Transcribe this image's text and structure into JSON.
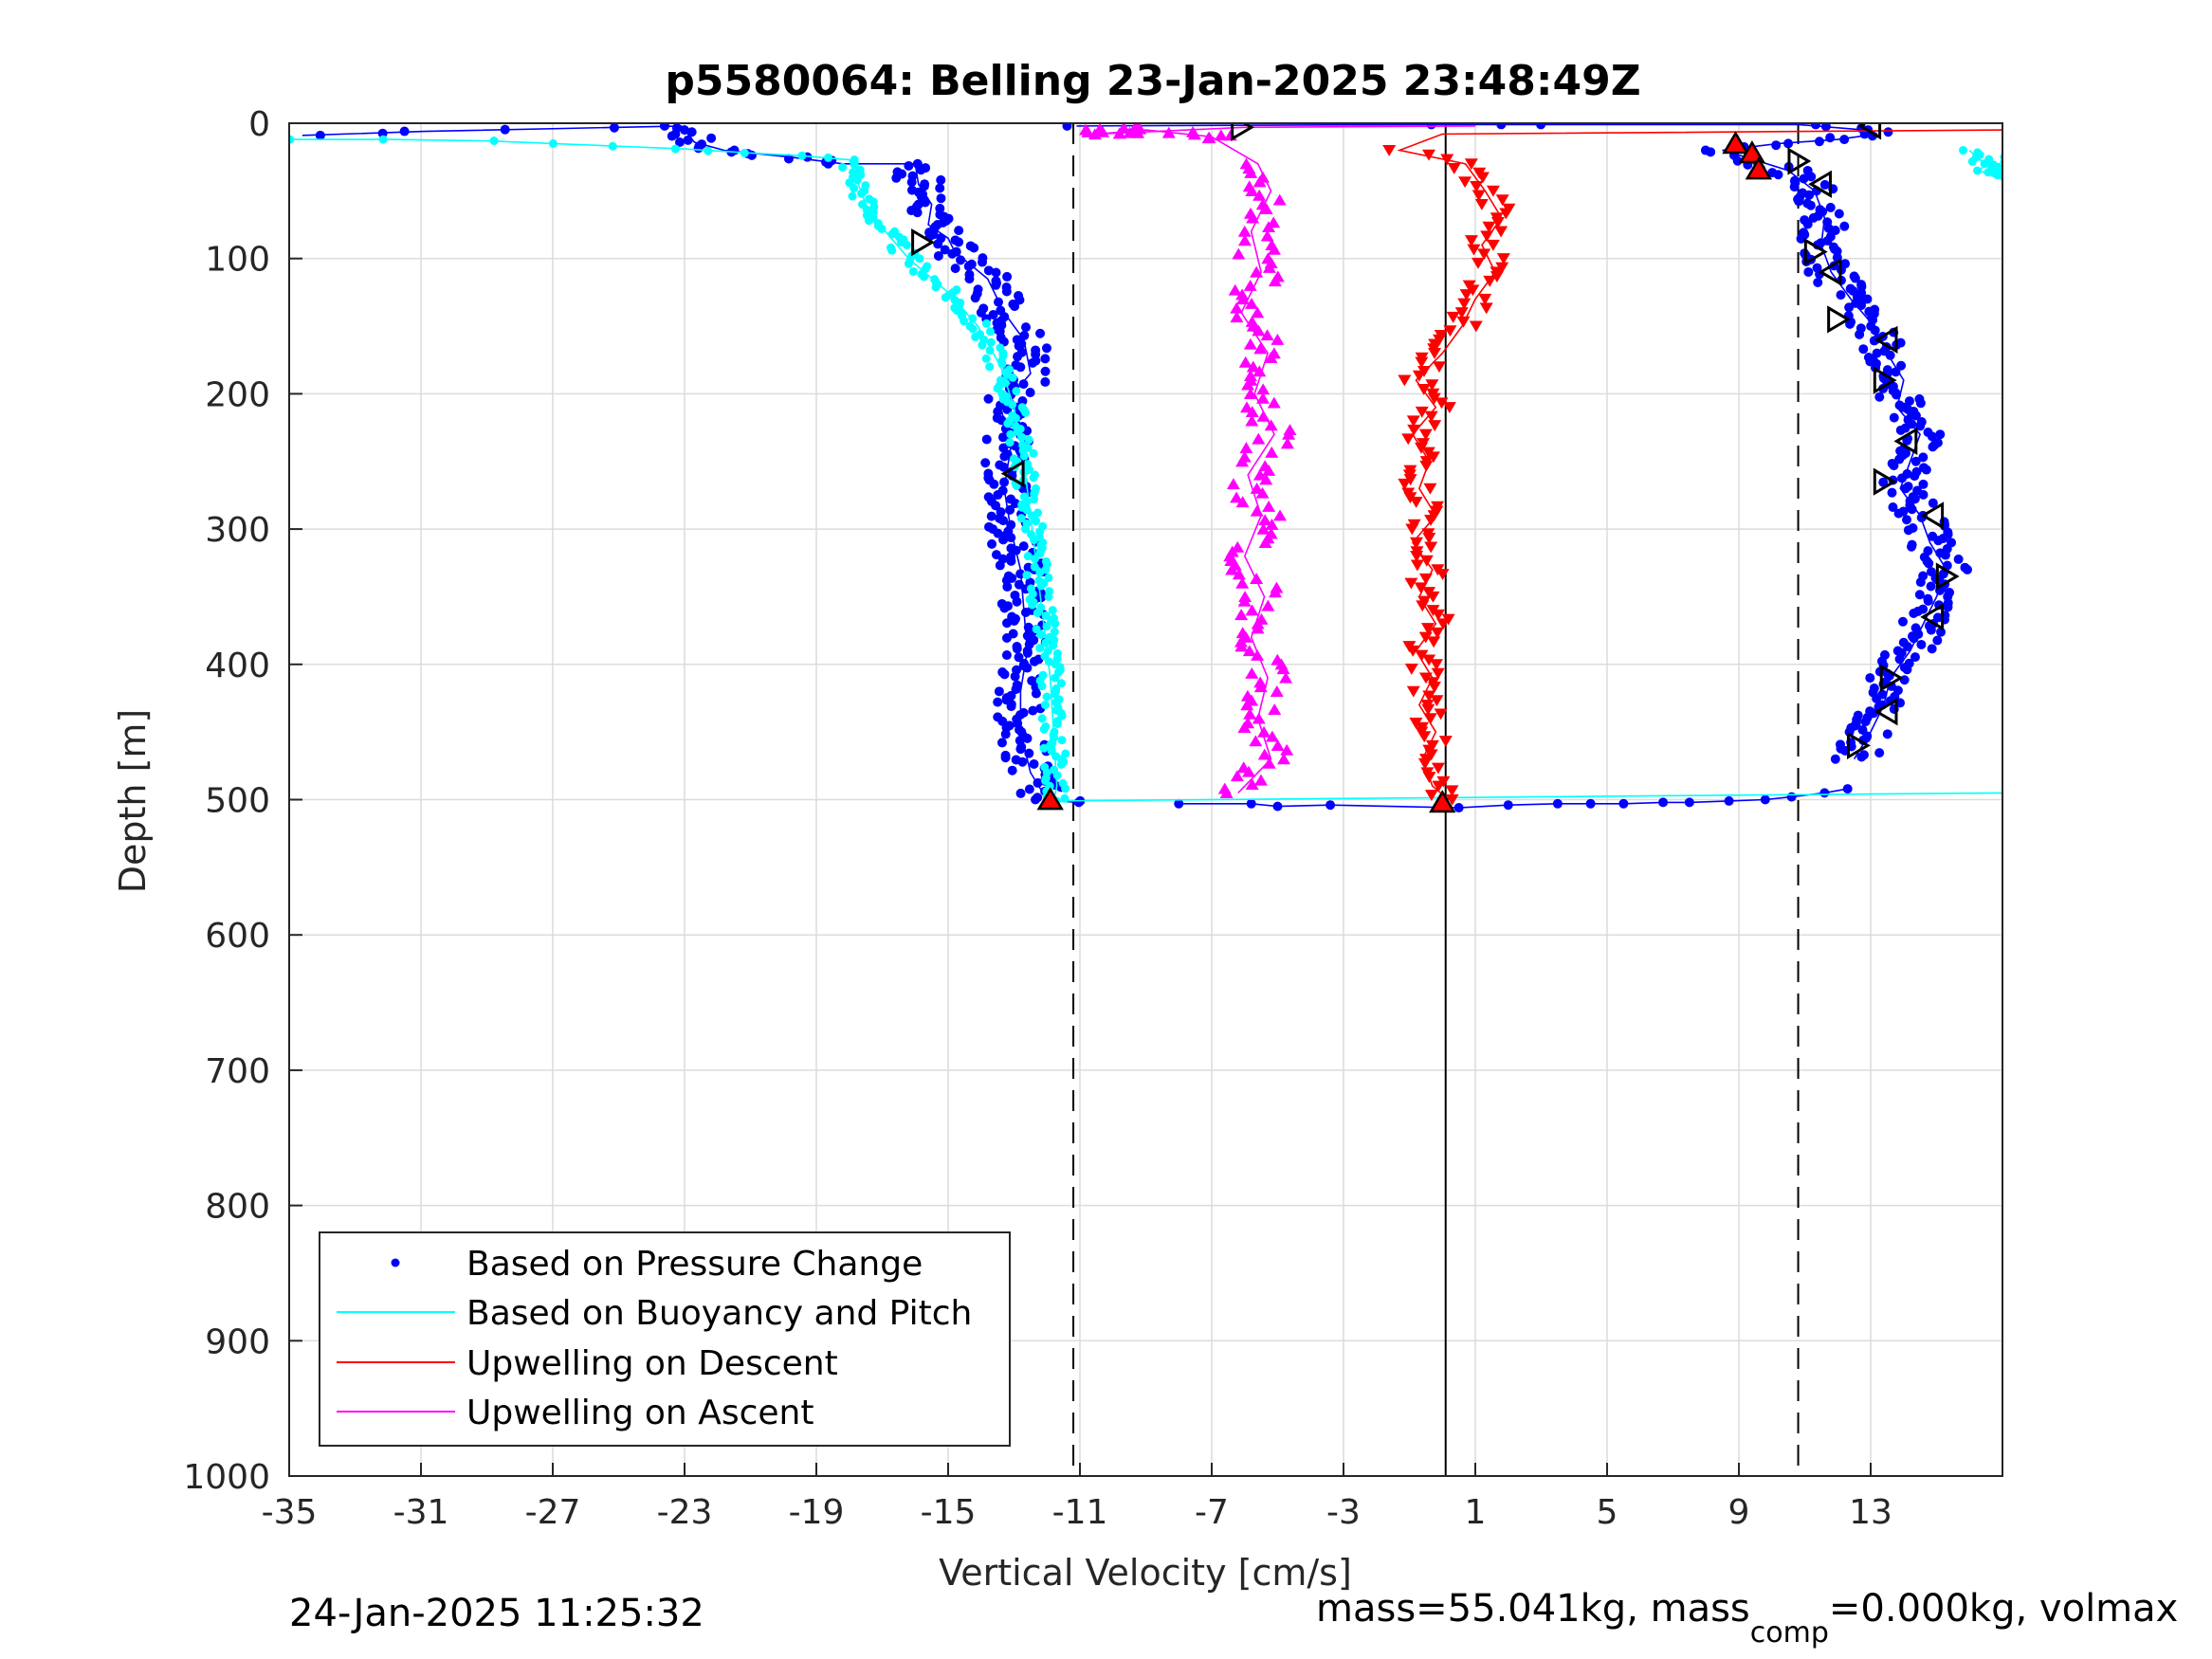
{
  "chart_data": {
    "type": "scatter",
    "title": "p5580064: Belling 23-Jan-2025 23:48:49Z",
    "xlabel": "Vertical Velocity [cm/s]",
    "ylabel": "Depth [m]",
    "xlim": [
      -35,
      17
    ],
    "ylim": [
      0,
      1000
    ],
    "y_reversed": true,
    "grid": true,
    "x_ticks": [
      -35,
      -31,
      -27,
      -23,
      -19,
      -15,
      -11,
      -7,
      -3,
      1,
      5,
      9,
      13
    ],
    "y_ticks": [
      0,
      100,
      200,
      300,
      400,
      500,
      600,
      700,
      800,
      900,
      1000
    ],
    "reference_lines": {
      "dashed": [
        -11.2,
        10.8
      ],
      "solid": [
        0.1
      ]
    },
    "legend": {
      "placement": "lower-left",
      "entries": [
        {
          "label": "Based on Pressure Change",
          "color": "#0000ff",
          "marker": "dot"
        },
        {
          "label": "Based on Buoyancy and Pitch",
          "color": "#00ffff",
          "marker": "line"
        },
        {
          "label": "Upwelling on Descent",
          "color": "#ff0000",
          "marker": "line"
        },
        {
          "label": "Upwelling on Ascent",
          "color": "#ff00ff",
          "marker": "line"
        }
      ]
    },
    "series": [
      {
        "key": "pressure_descent",
        "label": "Based on Pressure Change",
        "color": "#0000ff",
        "points": [
          [
            -34.6,
            9
          ],
          [
            -30.9,
            6
          ],
          [
            -23.1,
            2
          ],
          [
            -22.7,
            14
          ],
          [
            -21.8,
            20
          ],
          [
            -19.8,
            25
          ],
          [
            -18.2,
            30
          ],
          [
            -16.0,
            30
          ],
          [
            -15.9,
            45
          ],
          [
            -15.5,
            60
          ],
          [
            -15.6,
            75
          ],
          [
            -15.0,
            85
          ],
          [
            -14.8,
            95
          ],
          [
            -13.8,
            115
          ],
          [
            -13.3,
            140
          ],
          [
            -12.7,
            160
          ],
          [
            -12.5,
            185
          ],
          [
            -13.4,
            210
          ],
          [
            -13.1,
            240
          ],
          [
            -13.3,
            270
          ],
          [
            -13.1,
            300
          ],
          [
            -12.8,
            330
          ],
          [
            -12.7,
            360
          ],
          [
            -12.6,
            390
          ],
          [
            -12.8,
            420
          ],
          [
            -12.8,
            450
          ],
          [
            -12.5,
            480
          ],
          [
            -12.0,
            500
          ],
          [
            -11.1,
            502
          ]
        ]
      },
      {
        "key": "pressure_bottom",
        "label": "Based on Pressure Change",
        "color": "#0000ff",
        "points": [
          [
            -8.0,
            503
          ],
          [
            -5.8,
            503
          ],
          [
            -5.0,
            505
          ],
          [
            -3.4,
            504
          ],
          [
            0.5,
            506
          ],
          [
            2.0,
            504
          ],
          [
            3.5,
            503
          ],
          [
            4.5,
            503
          ],
          [
            5.5,
            503
          ],
          [
            6.7,
            502
          ],
          [
            7.5,
            502
          ],
          [
            8.7,
            501
          ],
          [
            9.8,
            500
          ],
          [
            10.6,
            498
          ],
          [
            11.6,
            495
          ],
          [
            12.3,
            492
          ]
        ]
      },
      {
        "key": "pressure_ascent",
        "label": "Based on Pressure Change",
        "color": "#0000ff",
        "points": [
          [
            12.5,
            470
          ],
          [
            13.0,
            450
          ],
          [
            13.4,
            430
          ],
          [
            13.6,
            410
          ],
          [
            14.2,
            390
          ],
          [
            14.6,
            370
          ],
          [
            15.0,
            350
          ],
          [
            15.3,
            330
          ],
          [
            14.8,
            310
          ],
          [
            14.5,
            290
          ],
          [
            13.9,
            270
          ],
          [
            14.2,
            250
          ],
          [
            14.5,
            230
          ],
          [
            13.8,
            210
          ],
          [
            14.0,
            190
          ],
          [
            13.5,
            170
          ],
          [
            13.1,
            150
          ],
          [
            12.4,
            130
          ],
          [
            11.8,
            110
          ],
          [
            11.5,
            90
          ],
          [
            11.6,
            70
          ],
          [
            11.3,
            50
          ],
          [
            10.5,
            35
          ],
          [
            9.2,
            25
          ],
          [
            8.5,
            20
          ],
          [
            10.2,
            15
          ],
          [
            12.0,
            12
          ],
          [
            13.2,
            8
          ],
          [
            12.8,
            5
          ],
          [
            10.8,
            1
          ],
          [
            3.5,
            1
          ],
          [
            1.5,
            1
          ],
          [
            -1.0,
            1
          ],
          [
            -11.1,
            2
          ]
        ]
      },
      {
        "key": "buoyancy_descent",
        "label": "Based on Buoyancy and Pitch",
        "color": "#00ffff",
        "points": [
          [
            -35.0,
            12
          ],
          [
            -32.0,
            12
          ],
          [
            -29.0,
            13
          ],
          [
            -27.0,
            15
          ],
          [
            -25.0,
            17
          ],
          [
            -23.0,
            19
          ],
          [
            -21.0,
            22
          ],
          [
            -19.5,
            24
          ],
          [
            -18.0,
            27
          ],
          [
            -17.8,
            40
          ],
          [
            -17.5,
            60
          ],
          [
            -16.9,
            80
          ],
          [
            -16.2,
            100
          ],
          [
            -15.0,
            125
          ],
          [
            -14.1,
            150
          ],
          [
            -13.4,
            180
          ],
          [
            -13.0,
            210
          ],
          [
            -12.7,
            250
          ],
          [
            -12.5,
            290
          ],
          [
            -12.3,
            330
          ],
          [
            -12.1,
            370
          ],
          [
            -11.9,
            410
          ],
          [
            -11.8,
            450
          ],
          [
            -11.7,
            490
          ],
          [
            -11.8,
            501
          ]
        ]
      },
      {
        "key": "buoyancy_bottom",
        "label": "Based on Buoyancy and Pitch",
        "color": "#00ffff",
        "points": [
          [
            -11.8,
            501
          ],
          [
            17.0,
            495
          ]
        ]
      },
      {
        "key": "buoyancy_surface",
        "label": "Based on Buoyancy and Pitch",
        "color": "#00ffff",
        "points": [
          [
            16.0,
            20
          ],
          [
            16.2,
            25
          ],
          [
            16.5,
            30
          ],
          [
            16.3,
            35
          ],
          [
            16.8,
            40
          ],
          [
            17.0,
            25
          ]
        ]
      },
      {
        "key": "upwelling_descent",
        "label": "Upwelling on Descent",
        "color": "#ff0000",
        "points": [
          [
            17.0,
            5
          ],
          [
            0.0,
            8
          ],
          [
            -1.3,
            20
          ],
          [
            0.7,
            30
          ],
          [
            1.3,
            50
          ],
          [
            1.8,
            70
          ],
          [
            1.2,
            90
          ],
          [
            1.6,
            110
          ],
          [
            1.0,
            130
          ],
          [
            0.6,
            150
          ],
          [
            0.0,
            170
          ],
          [
            -0.8,
            190
          ],
          [
            -0.2,
            210
          ],
          [
            -0.9,
            230
          ],
          [
            -0.4,
            250
          ],
          [
            -0.7,
            270
          ],
          [
            -0.2,
            290
          ],
          [
            -0.9,
            310
          ],
          [
            -0.3,
            330
          ],
          [
            -0.7,
            350
          ],
          [
            -0.2,
            370
          ],
          [
            -0.8,
            390
          ],
          [
            -0.3,
            410
          ],
          [
            -0.7,
            430
          ],
          [
            -0.2,
            450
          ],
          [
            -0.6,
            470
          ],
          [
            -0.3,
            490
          ],
          [
            0.2,
            500
          ]
        ]
      },
      {
        "key": "upwelling_ascent",
        "label": "Upwelling on Ascent",
        "color": "#ff00ff",
        "points": [
          [
            -6.2,
            495
          ],
          [
            -5.2,
            470
          ],
          [
            -5.6,
            440
          ],
          [
            -5.3,
            410
          ],
          [
            -5.8,
            380
          ],
          [
            -5.4,
            350
          ],
          [
            -6.0,
            320
          ],
          [
            -5.5,
            290
          ],
          [
            -5.9,
            260
          ],
          [
            -5.1,
            230
          ],
          [
            -5.7,
            200
          ],
          [
            -5.3,
            170
          ],
          [
            -6.1,
            140
          ],
          [
            -5.5,
            110
          ],
          [
            -5.8,
            80
          ],
          [
            -5.2,
            50
          ],
          [
            -5.6,
            30
          ],
          [
            -7.0,
            10
          ],
          [
            -9.0,
            5
          ],
          [
            -10.5,
            8
          ],
          [
            -6.0,
            3
          ],
          [
            1.0,
            2
          ]
        ]
      }
    ],
    "markers": {
      "red_triangles": [
        [
          -11.9,
          500
        ],
        [
          0.0,
          502
        ],
        [
          8.9,
          15
        ],
        [
          9.4,
          22
        ],
        [
          9.6,
          34
        ]
      ],
      "open_triangles": [
        [
          -6.1,
          3
        ],
        [
          13.0,
          2
        ],
        [
          -15.8,
          88
        ],
        [
          -13.0,
          259
        ],
        [
          10.8,
          28
        ],
        [
          11.5,
          45
        ],
        [
          11.3,
          95
        ],
        [
          11.8,
          110
        ],
        [
          12.0,
          145
        ],
        [
          13.5,
          160
        ],
        [
          13.4,
          190
        ],
        [
          14.1,
          235
        ],
        [
          13.4,
          265
        ],
        [
          14.9,
          290
        ],
        [
          15.3,
          335
        ],
        [
          14.9,
          365
        ],
        [
          13.6,
          410
        ],
        [
          13.5,
          435
        ],
        [
          12.6,
          460
        ]
      ]
    }
  },
  "footer": {
    "left": "24-Jan-2025 11:25:32",
    "right_main": "mass=55.041kg, mass",
    "right_sub": "comp",
    "right_tail": "=0.000kg, volmax"
  }
}
